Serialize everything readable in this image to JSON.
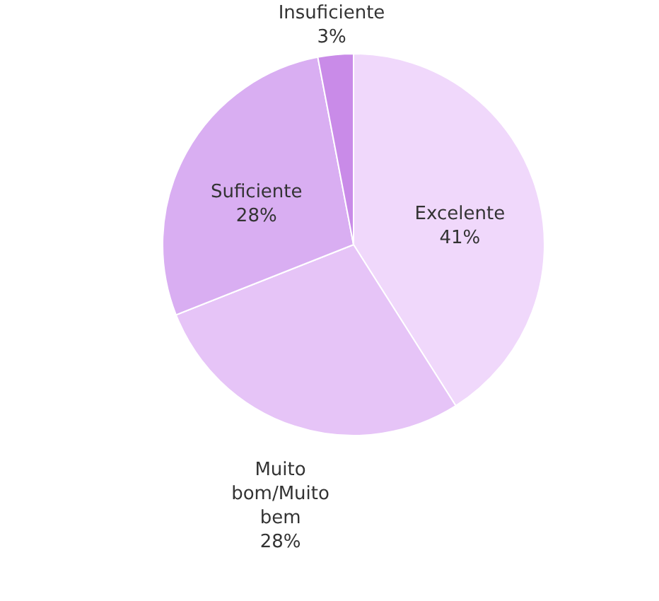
{
  "chart_data": {
    "type": "pie",
    "categories": [
      "Excelente",
      "Muito bom/Muito bem",
      "Suficiente",
      "Insuficiente"
    ],
    "values": [
      41,
      28,
      28,
      3
    ],
    "value_labels": [
      "41%",
      "28%",
      "28%",
      "3%"
    ],
    "colors": [
      "#f0d8fb",
      "#e6c4f7",
      "#d9aef2",
      "#c98be8"
    ]
  }
}
